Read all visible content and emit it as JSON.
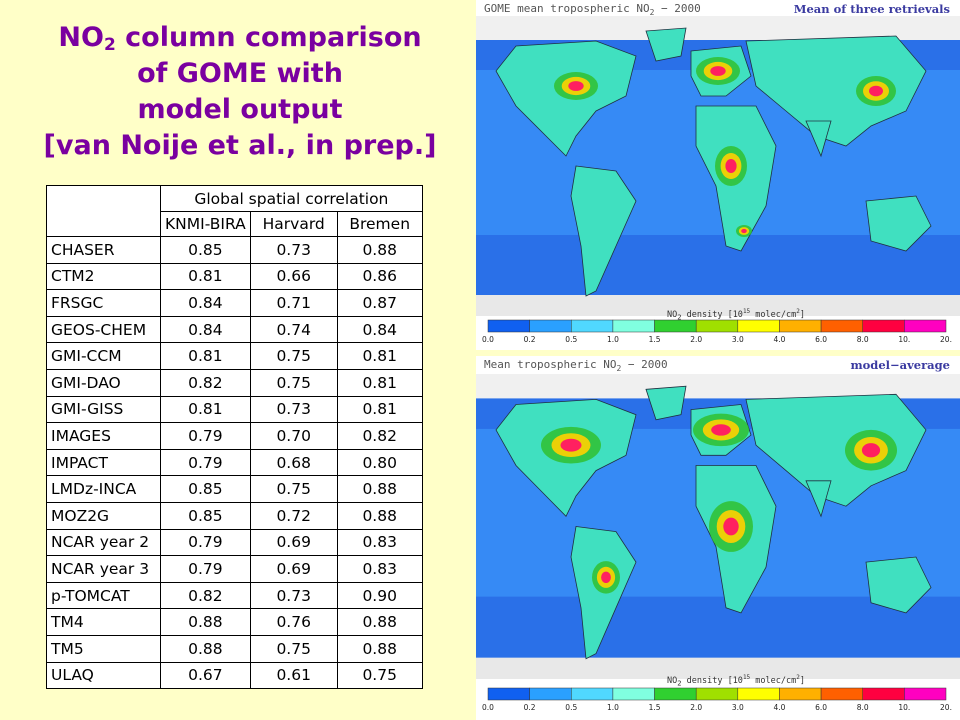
{
  "title": {
    "line1_pre": "NO",
    "line1_sub": "2",
    "line1_post": " column comparison",
    "line2": "of GOME with",
    "line3": "model output",
    "line4": "[van Noije et al., in prep.]"
  },
  "table": {
    "group_header": "Global spatial correlation",
    "columns": [
      "KNMI-BIRA",
      "Harvard",
      "Bremen"
    ],
    "rows": [
      {
        "model": "CHASER",
        "values": [
          "0.85",
          "0.73",
          "0.88"
        ]
      },
      {
        "model": "CTM2",
        "values": [
          "0.81",
          "0.66",
          "0.86"
        ]
      },
      {
        "model": "FRSGC",
        "values": [
          "0.84",
          "0.71",
          "0.87"
        ]
      },
      {
        "model": "GEOS-CHEM",
        "values": [
          "0.84",
          "0.74",
          "0.84"
        ]
      },
      {
        "model": "GMI-CCM",
        "values": [
          "0.81",
          "0.75",
          "0.81"
        ]
      },
      {
        "model": "GMI-DAO",
        "values": [
          "0.82",
          "0.75",
          "0.81"
        ]
      },
      {
        "model": "GMI-GISS",
        "values": [
          "0.81",
          "0.73",
          "0.81"
        ]
      },
      {
        "model": "IMAGES",
        "values": [
          "0.79",
          "0.70",
          "0.82"
        ]
      },
      {
        "model": "IMPACT",
        "values": [
          "0.79",
          "0.68",
          "0.80"
        ]
      },
      {
        "model": "LMDz-INCA",
        "values": [
          "0.85",
          "0.75",
          "0.88"
        ]
      },
      {
        "model": "MOZ2G",
        "values": [
          "0.85",
          "0.72",
          "0.88"
        ]
      },
      {
        "model": "NCAR year 2",
        "values": [
          "0.79",
          "0.69",
          "0.83"
        ]
      },
      {
        "model": "NCAR year 3",
        "values": [
          "0.79",
          "0.69",
          "0.83"
        ]
      },
      {
        "model": "p-TOMCAT",
        "values": [
          "0.82",
          "0.73",
          "0.90"
        ]
      },
      {
        "model": "TM4",
        "values": [
          "0.88",
          "0.76",
          "0.88"
        ]
      },
      {
        "model": "TM5",
        "values": [
          "0.88",
          "0.75",
          "0.88"
        ]
      },
      {
        "model": "ULAQ",
        "values": [
          "0.67",
          "0.61",
          "0.75"
        ]
      }
    ]
  },
  "maps": [
    {
      "title_pre": "GOME mean tropospheric NO",
      "title_sub": "2",
      "title_post": " − 2000",
      "tag": "Mean of three retrievals",
      "cbar_label_pre": "NO",
      "cbar_label_sub": "2",
      "cbar_label_mid": " density [10",
      "cbar_label_sup": "15",
      "cbar_label_post": " molec/cm",
      "cbar_label_sup2": "2",
      "cbar_label_end": "]"
    },
    {
      "title_pre": "Mean tropospheric NO",
      "title_sub": "2",
      "title_post": " − 2000",
      "tag": "model−average",
      "cbar_label_pre": "NO",
      "cbar_label_sub": "2",
      "cbar_label_mid": " density [10",
      "cbar_label_sup": "15",
      "cbar_label_post": " molec/cm",
      "cbar_label_sup2": "2",
      "cbar_label_end": "]"
    }
  ],
  "colorbar": {
    "ticks": [
      "0.0",
      "0.2",
      "0.5",
      "1.0",
      "1.5",
      "2.0",
      "3.0",
      "4.0",
      "6.0",
      "8.0",
      "10.",
      "20."
    ],
    "colors": [
      "#1060f0",
      "#2aa0ff",
      "#50d8ff",
      "#80ffe0",
      "#30d030",
      "#a0e000",
      "#ffff00",
      "#ffb000",
      "#ff6000",
      "#ff0040",
      "#ff00c0"
    ]
  },
  "palette": {
    "background": "#ffffc8",
    "title_color": "#7a00a0",
    "ocean": "#2a70e8",
    "ocean_light": "#40a0ff"
  }
}
